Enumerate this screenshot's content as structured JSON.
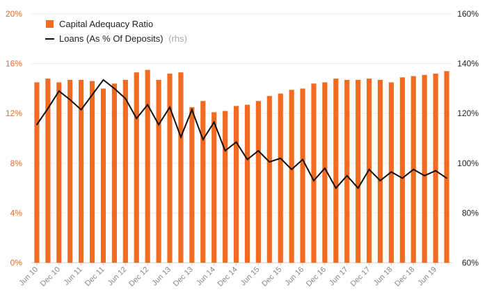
{
  "chart_data": {
    "type": "bar",
    "categories": [
      "Jun 10",
      "Sep 10",
      "Dec 10",
      "Mar 11",
      "Jun 11",
      "Sep 11",
      "Dec 11",
      "Mar 12",
      "Jun 12",
      "Sep 12",
      "Dec 12",
      "Mar 13",
      "Jun 13",
      "Sep 13",
      "Dec 13",
      "Mar 14",
      "Jun 14",
      "Sep 14",
      "Dec 14",
      "Mar 15",
      "Jun 15",
      "Sep 15",
      "Dec 15",
      "Mar 16",
      "Jun 16",
      "Sep 16",
      "Dec 16",
      "Mar 17",
      "Jun 17",
      "Sep 17",
      "Dec 17",
      "Mar 18",
      "Jun 18",
      "Sep 18",
      "Dec 18",
      "Mar 19",
      "Jun 19",
      "Sep 19"
    ],
    "x_tick_labels": [
      "Jun 10",
      "Dec 10",
      "Jun 11",
      "Dec 11",
      "Jun 12",
      "Dec 12",
      "Jun 13",
      "Dec 13",
      "Jun 14",
      "Dec 14",
      "Jun 15",
      "Dec 15",
      "Jun 16",
      "Dec 16",
      "Jun 17",
      "Dec 17",
      "Jun 18",
      "Dec 18",
      "Jun 19"
    ],
    "series": [
      {
        "name": "Capital Adequacy Ratio",
        "type": "bar",
        "axis": "left",
        "color": "#f26b21",
        "values": [
          14.5,
          14.8,
          14.5,
          14.7,
          14.7,
          14.6,
          14.0,
          14.4,
          14.7,
          15.3,
          15.5,
          14.7,
          15.2,
          15.3,
          12.5,
          13.0,
          12.1,
          12.2,
          12.6,
          12.7,
          13.0,
          13.4,
          13.6,
          13.9,
          14.0,
          14.4,
          14.5,
          14.8,
          14.7,
          14.7,
          14.8,
          14.7,
          14.5,
          14.9,
          15.0,
          15.1,
          15.2,
          15.4
        ]
      },
      {
        "name": "Loans (As % Of Deposits)",
        "name_suffix": "(rhs)",
        "type": "line",
        "axis": "right",
        "color": "#111111",
        "values": [
          115.5,
          122.0,
          129.0,
          125.5,
          121.5,
          127.5,
          133.5,
          130.0,
          126.0,
          118.0,
          123.5,
          115.5,
          122.5,
          110.5,
          121.5,
          109.5,
          116.5,
          105.0,
          108.5,
          101.5,
          105.0,
          100.5,
          102.0,
          97.5,
          101.5,
          93.0,
          98.0,
          90.0,
          95.0,
          90.0,
          97.5,
          93.0,
          96.5,
          94.0,
          97.5,
          95.0,
          97.0,
          94.0
        ]
      }
    ],
    "y_left": {
      "ticks": [
        "0%",
        "4%",
        "8%",
        "12%",
        "16%",
        "20%"
      ],
      "ylim": [
        0,
        20
      ]
    },
    "y_right": {
      "ticks": [
        "60%",
        "80%",
        "100%",
        "120%",
        "140%",
        "160%"
      ],
      "ylim": [
        60,
        160
      ]
    },
    "grid": "horizontal",
    "legend": "top-left"
  }
}
